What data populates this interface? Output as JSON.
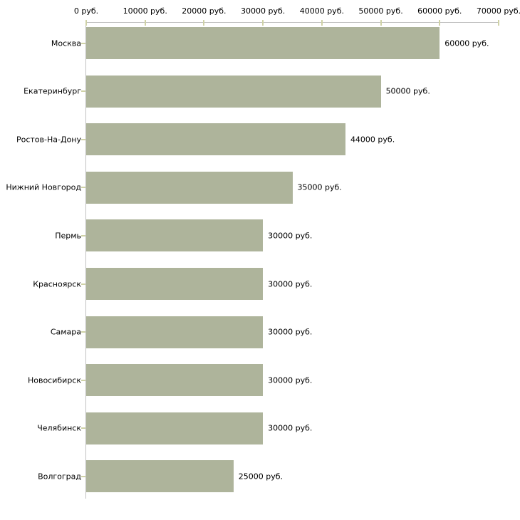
{
  "chart_data": {
    "type": "bar",
    "orientation": "horizontal",
    "title": "",
    "categories": [
      "Москва",
      "Екатеринбург",
      "Ростов-На-Дону",
      "Нижний Новгород",
      "Пермь",
      "Красноярск",
      "Самара",
      "Новосибирск",
      "Челябинск",
      "Волгоград"
    ],
    "values": [
      60000,
      50000,
      44000,
      35000,
      30000,
      30000,
      30000,
      30000,
      30000,
      25000
    ],
    "value_labels": [
      "60000 руб.",
      "50000 руб.",
      "44000 руб.",
      "35000 руб.",
      "30000 руб.",
      "30000 руб.",
      "30000 руб.",
      "30000 руб.",
      "30000 руб.",
      "25000 руб."
    ],
    "x_axis": {
      "position": "top",
      "min": 0,
      "max": 70000,
      "ticks": [
        0,
        10000,
        20000,
        30000,
        40000,
        50000,
        60000,
        70000
      ],
      "tick_labels": [
        "0 руб.",
        "10000 руб.",
        "20000 руб.",
        "30000 руб.",
        "40000 руб.",
        "50000 руб.",
        "60000 руб.",
        "70000 руб."
      ]
    },
    "grid": "off",
    "legend": "none",
    "colors": {
      "bar": "#aeb49b",
      "axis_line": "#c0c0c0",
      "tick_mark": "#cfd2a6",
      "text": "#000000",
      "background": "#ffffff"
    }
  }
}
